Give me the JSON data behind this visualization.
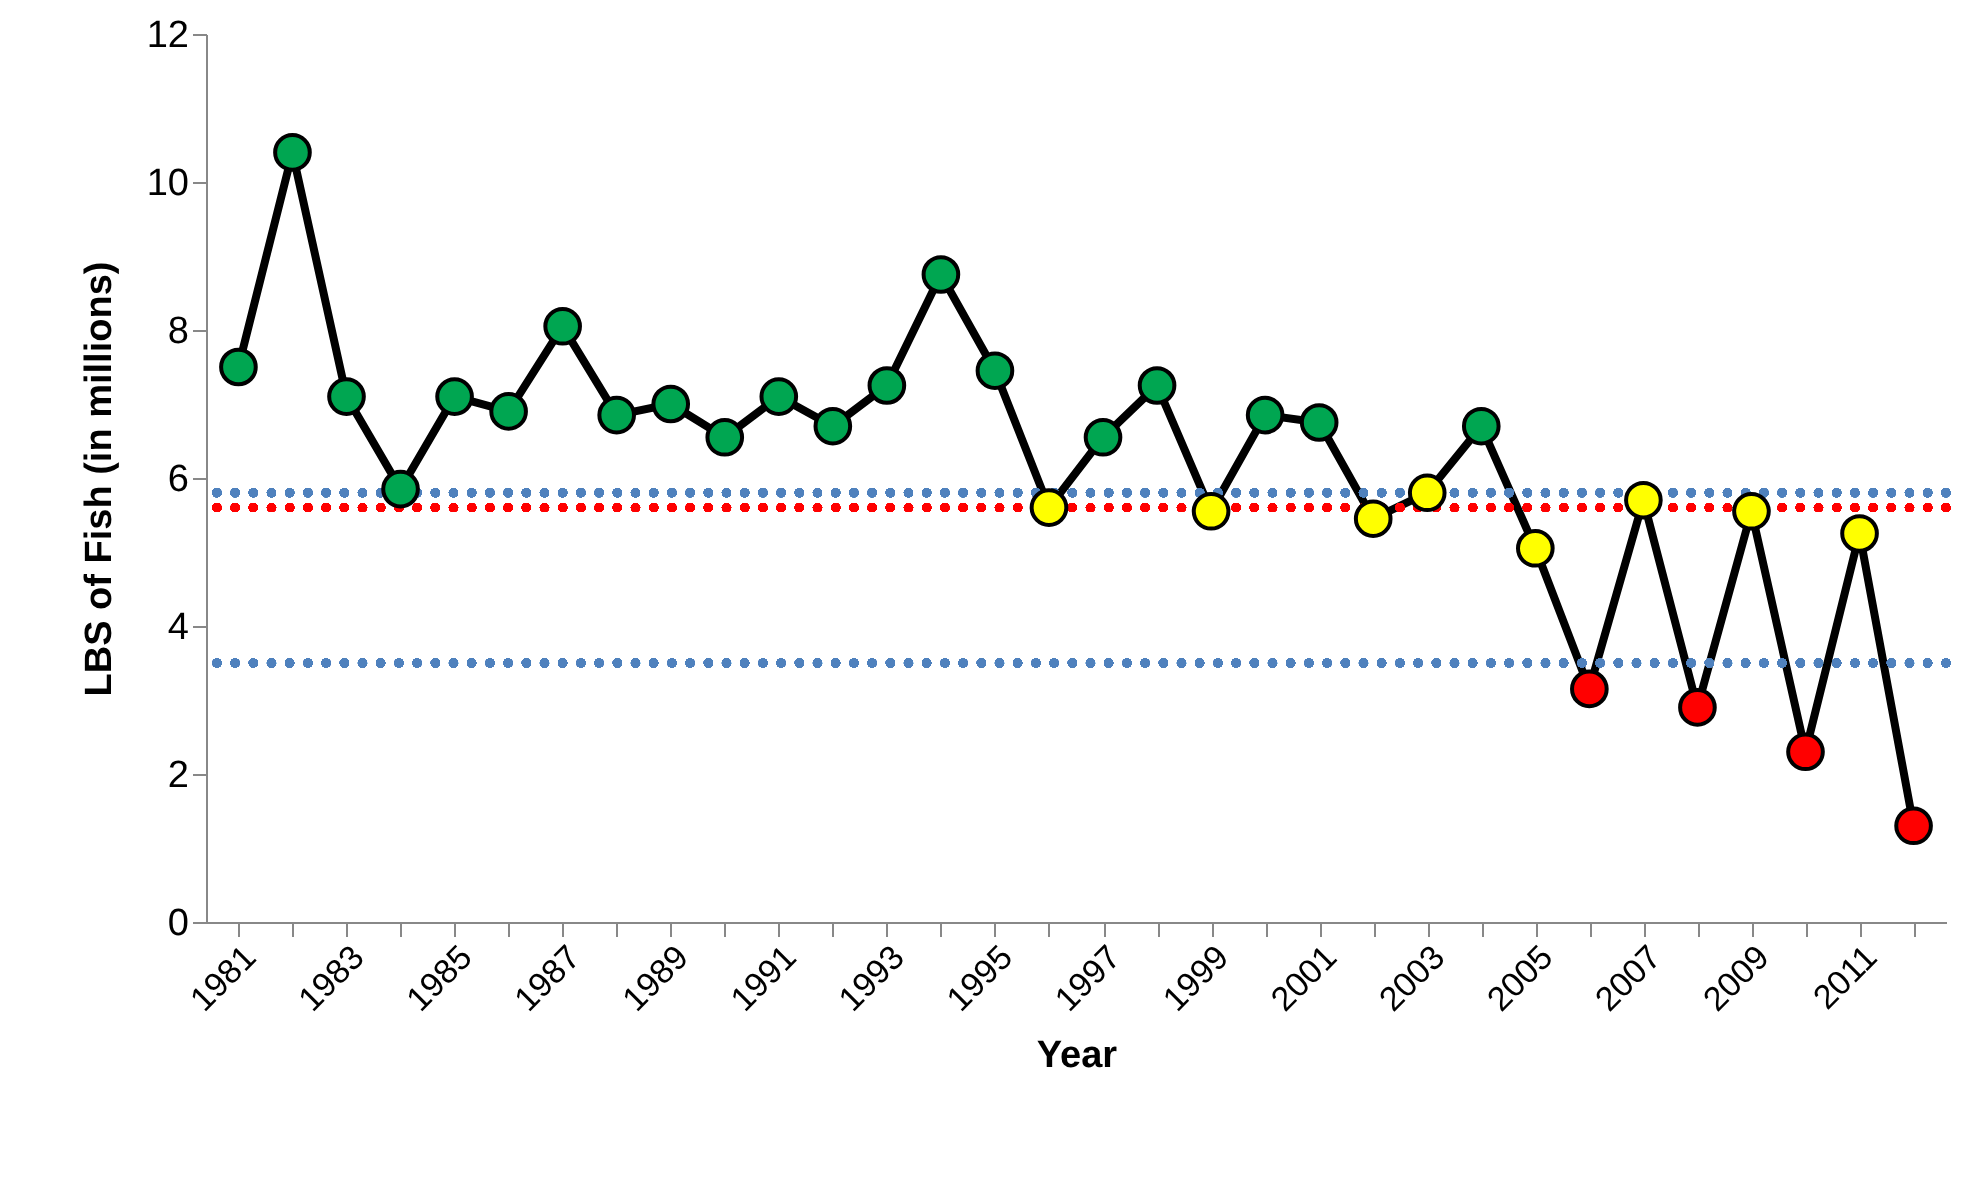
{
  "chart_data": {
    "type": "line",
    "xlabel": "Year",
    "ylabel": "LBS of Fish (in millions)",
    "categories": [
      "1981",
      null,
      "1983",
      null,
      "1985",
      null,
      "1987",
      null,
      "1989",
      null,
      "1991",
      null,
      "1993",
      null,
      "1995",
      null,
      "1997",
      null,
      "1999",
      null,
      "2001",
      null,
      "2003",
      null,
      "2005",
      null,
      "2007",
      null,
      "2009",
      null,
      "2011",
      null
    ],
    "values": [
      7.5,
      10.4,
      7.1,
      5.85,
      7.1,
      6.9,
      8.05,
      6.85,
      7.0,
      6.55,
      7.1,
      6.7,
      7.25,
      8.75,
      7.45,
      5.6,
      6.55,
      7.25,
      5.55,
      6.85,
      6.75,
      5.45,
      5.8,
      6.7,
      5.05,
      3.15,
      5.7,
      2.9,
      5.55,
      2.3,
      5.25,
      1.3
    ],
    "color": "#000000",
    "colors": [
      "#00a651",
      "#00a651",
      "#00a651",
      "#00a651",
      "#00a651",
      "#00a651",
      "#00a651",
      "#00a651",
      "#00a651",
      "#00a651",
      "#00a651",
      "#00a651",
      "#00a651",
      "#00a651",
      "#00a651",
      "#ffff00",
      "#00a651",
      "#00a651",
      "#ffff00",
      "#00a651",
      "#00a651",
      "#ffff00",
      "#ffff00",
      "#00a651",
      "#ffff00",
      "#ff0000",
      "#ffff00",
      "#ff0000",
      "#ffff00",
      "#ff0000",
      "#ffff00",
      "#ff0000"
    ],
    "marker": "circle",
    "ylim": [
      0,
      12
    ],
    "yticks": [
      0,
      2,
      4,
      6,
      8,
      10,
      12
    ],
    "grid": false,
    "ref_lines": [
      {
        "axis": "y",
        "value": 5.8,
        "color": "#4f81bd",
        "line_style": "dotted"
      },
      {
        "axis": "y",
        "value": 5.6,
        "color": "#ff0000",
        "line_style": "dotted"
      },
      {
        "axis": "y",
        "value": 3.5,
        "color": "#4f81bd",
        "line_style": "dotted"
      }
    ]
  }
}
